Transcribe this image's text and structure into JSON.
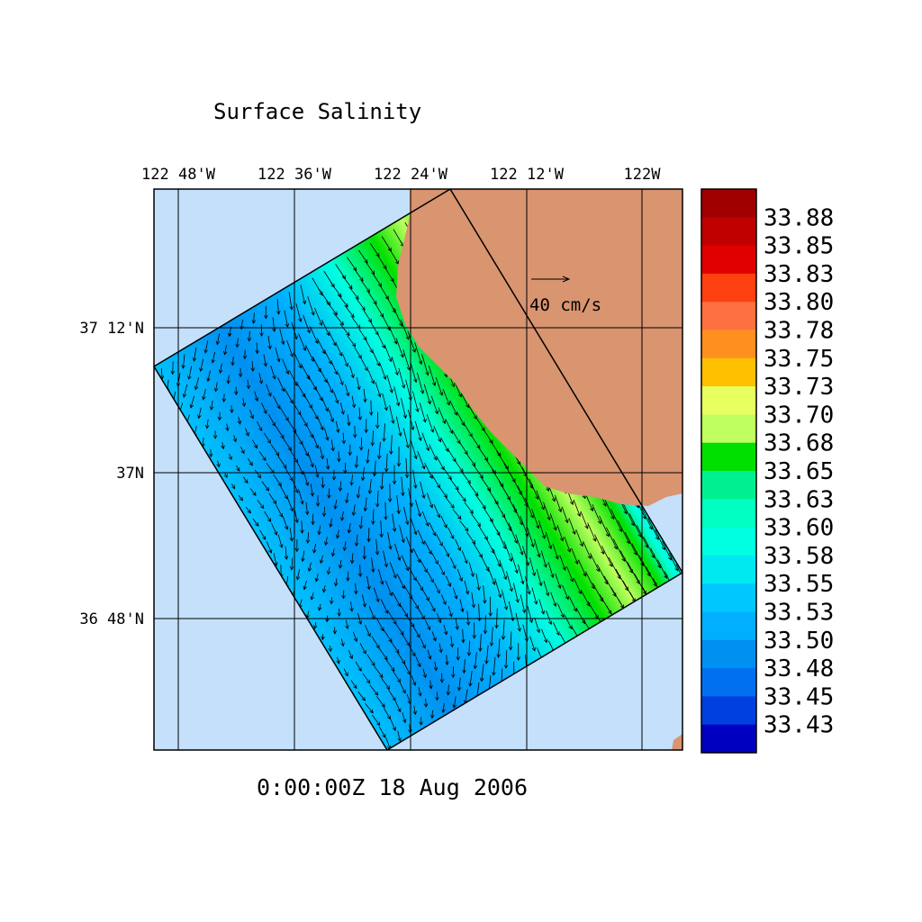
{
  "title": "Surface Salinity",
  "time": "0:00:00Z  18 Aug 2006",
  "lon_labels": [
    "122 48'W",
    "122 36'W",
    "122 24'W",
    "122 12'W",
    "122W"
  ],
  "lat_labels": [
    "37 12'N",
    "37N",
    "36 48'N"
  ],
  "vector_scale": "40 cm/s",
  "colorbar": {
    "labels": [
      "33.88",
      "33.85",
      "33.83",
      "33.80",
      "33.78",
      "33.75",
      "33.73",
      "33.70",
      "33.68",
      "33.65",
      "33.63",
      "33.60",
      "33.58",
      "33.55",
      "33.53",
      "33.50",
      "33.48",
      "33.45",
      "33.43"
    ],
    "colors": [
      "#a00000",
      "#c00000",
      "#e00000",
      "#ff4010",
      "#ff7040",
      "#ff9020",
      "#ffc000",
      "#e8ff60",
      "#c0ff60",
      "#00e000",
      "#00f090",
      "#00ffc0",
      "#00ffe0",
      "#00e8f0",
      "#00c8ff",
      "#00b0ff",
      "#0090f0",
      "#0070f0",
      "#0040e0",
      "#0000c0"
    ]
  }
}
